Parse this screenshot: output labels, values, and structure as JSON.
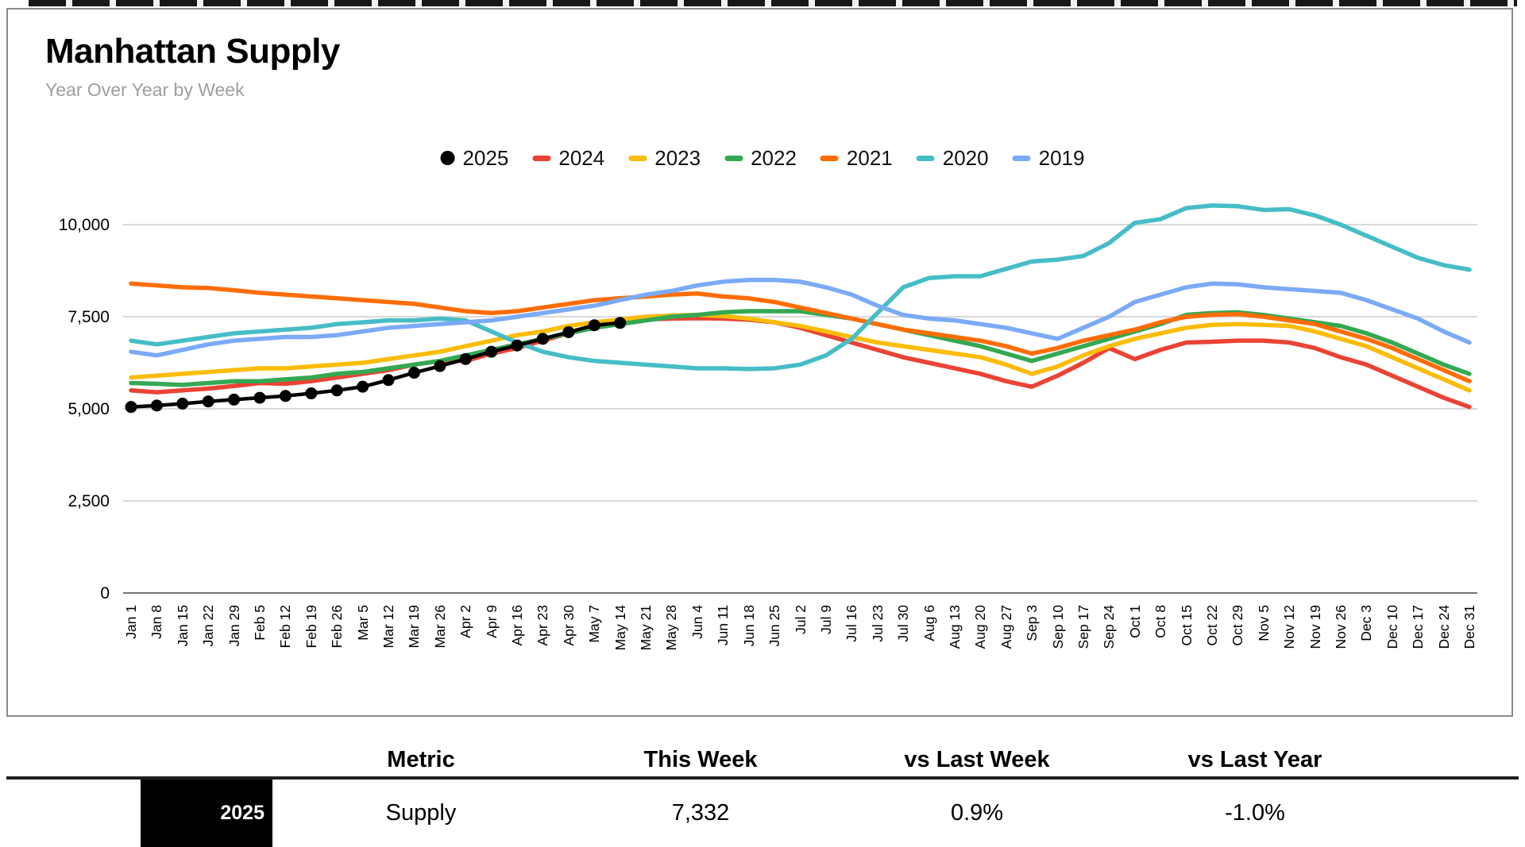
{
  "chart_data": {
    "type": "line",
    "title": "Manhattan Supply",
    "subtitle": "Year Over Year by Week",
    "legend_position": "top",
    "grid": true,
    "ylim": [
      0,
      10780
    ],
    "y_ticks": [
      0,
      2500,
      5000,
      7500,
      10000
    ],
    "y_tick_labels": [
      "0",
      "2,500",
      "5,000",
      "7,500",
      "10,000"
    ],
    "categories": [
      "Jan 1",
      "Jan 8",
      "Jan 15",
      "Jan 22",
      "Jan 29",
      "Feb 5",
      "Feb 12",
      "Feb 19",
      "Feb 26",
      "Mar 5",
      "Mar 12",
      "Mar 19",
      "Mar 26",
      "Apr 2",
      "Apr 9",
      "Apr 16",
      "Apr 23",
      "Apr 30",
      "May 7",
      "May 14",
      "May 21",
      "May 28",
      "Jun 4",
      "Jun 11",
      "Jun 18",
      "Jun 25",
      "Jul 2",
      "Jul 9",
      "Jul 16",
      "Jul 23",
      "Jul 30",
      "Aug 6",
      "Aug 13",
      "Aug 20",
      "Aug 27",
      "Sep 3",
      "Sep 10",
      "Sep 17",
      "Sep 24",
      "Oct 1",
      "Oct 8",
      "Oct 15",
      "Oct 22",
      "Oct 29",
      "Nov 5",
      "Nov 12",
      "Nov 19",
      "Nov 26",
      "Dec 3",
      "Dec 10",
      "Dec 17",
      "Dec 24",
      "Dec 31"
    ],
    "series": [
      {
        "name": "2025",
        "color": "#000000",
        "marker": true,
        "values": [
          5050,
          5090,
          5140,
          5200,
          5250,
          5300,
          5350,
          5420,
          5500,
          5600,
          5780,
          5980,
          6160,
          6350,
          6550,
          6720,
          6900,
          7080,
          7267,
          7332
        ]
      },
      {
        "name": "2024",
        "color": "#EA4335",
        "values": [
          5500,
          5450,
          5500,
          5550,
          5620,
          5700,
          5680,
          5750,
          5850,
          5950,
          6050,
          6200,
          6300,
          6300,
          6500,
          6650,
          6850,
          7050,
          7250,
          7406,
          7430,
          7450,
          7460,
          7450,
          7420,
          7350,
          7200,
          7000,
          6800,
          6600,
          6400,
          6250,
          6100,
          5950,
          5750,
          5600,
          5900,
          6250,
          6650,
          6350,
          6600,
          6800,
          6820,
          6850,
          6850,
          6800,
          6650,
          6400,
          6200,
          5900,
          5600,
          5300,
          5050
        ]
      },
      {
        "name": "2023",
        "color": "#FBBC04",
        "values": [
          5850,
          5900,
          5950,
          6000,
          6050,
          6100,
          6100,
          6150,
          6200,
          6250,
          6350,
          6450,
          6550,
          6700,
          6850,
          7000,
          7100,
          7250,
          7350,
          7420,
          7500,
          7530,
          7550,
          7520,
          7450,
          7350,
          7250,
          7100,
          6950,
          6800,
          6700,
          6600,
          6500,
          6400,
          6200,
          5950,
          6150,
          6450,
          6700,
          6900,
          7050,
          7200,
          7280,
          7300,
          7280,
          7250,
          7100,
          6900,
          6700,
          6400,
          6100,
          5800,
          5500
        ]
      },
      {
        "name": "2022",
        "color": "#34A853",
        "values": [
          5700,
          5680,
          5650,
          5700,
          5750,
          5750,
          5800,
          5850,
          5950,
          6000,
          6100,
          6200,
          6300,
          6450,
          6600,
          6750,
          6900,
          7050,
          7200,
          7300,
          7400,
          7500,
          7550,
          7620,
          7650,
          7650,
          7650,
          7550,
          7450,
          7300,
          7150,
          7000,
          6850,
          6700,
          6500,
          6300,
          6500,
          6700,
          6900,
          7100,
          7300,
          7550,
          7600,
          7620,
          7550,
          7450,
          7350,
          7250,
          7050,
          6800,
          6500,
          6200,
          5950
        ]
      },
      {
        "name": "2021",
        "color": "#FF6D01",
        "values": [
          8400,
          8350,
          8300,
          8280,
          8220,
          8150,
          8100,
          8050,
          8000,
          7950,
          7900,
          7850,
          7750,
          7650,
          7600,
          7650,
          7750,
          7850,
          7950,
          8000,
          8050,
          8100,
          8130,
          8050,
          8000,
          7900,
          7750,
          7600,
          7450,
          7300,
          7150,
          7050,
          6950,
          6850,
          6700,
          6500,
          6650,
          6850,
          7000,
          7150,
          7350,
          7500,
          7550,
          7570,
          7500,
          7400,
          7300,
          7100,
          6900,
          6650,
          6350,
          6050,
          5750
        ]
      },
      {
        "name": "2020",
        "color": "#46BDC6",
        "values": [
          6850,
          6750,
          6850,
          6950,
          7050,
          7100,
          7150,
          7200,
          7300,
          7350,
          7400,
          7400,
          7450,
          7400,
          7100,
          6800,
          6550,
          6400,
          6300,
          6250,
          6200,
          6150,
          6100,
          6100,
          6080,
          6100,
          6200,
          6450,
          6900,
          7600,
          8300,
          8550,
          8600,
          8600,
          8800,
          9000,
          9050,
          9150,
          9500,
          10050,
          10150,
          10450,
          10520,
          10500,
          10400,
          10420,
          10250,
          10000,
          9700,
          9400,
          9100,
          8900,
          8780
        ]
      },
      {
        "name": "2019",
        "color": "#7BAAF7",
        "values": [
          6550,
          6450,
          6600,
          6750,
          6850,
          6900,
          6950,
          6950,
          7000,
          7100,
          7200,
          7250,
          7300,
          7350,
          7400,
          7500,
          7600,
          7700,
          7800,
          7950,
          8100,
          8200,
          8350,
          8450,
          8500,
          8500,
          8450,
          8300,
          8100,
          7800,
          7550,
          7450,
          7400,
          7300,
          7200,
          7050,
          6900,
          7200,
          7500,
          7900,
          8100,
          8300,
          8400,
          8380,
          8300,
          8250,
          8200,
          8150,
          7950,
          7700,
          7450,
          7100,
          6800
        ]
      }
    ]
  },
  "table": {
    "headers": [
      "Metric",
      "This Week",
      "vs Last Week",
      "vs Last Year"
    ],
    "row": {
      "year": "2025",
      "metric": "Supply",
      "this_week": "7,332",
      "vs_last_week": "0.9%",
      "vs_last_year": "-1.0%"
    }
  }
}
